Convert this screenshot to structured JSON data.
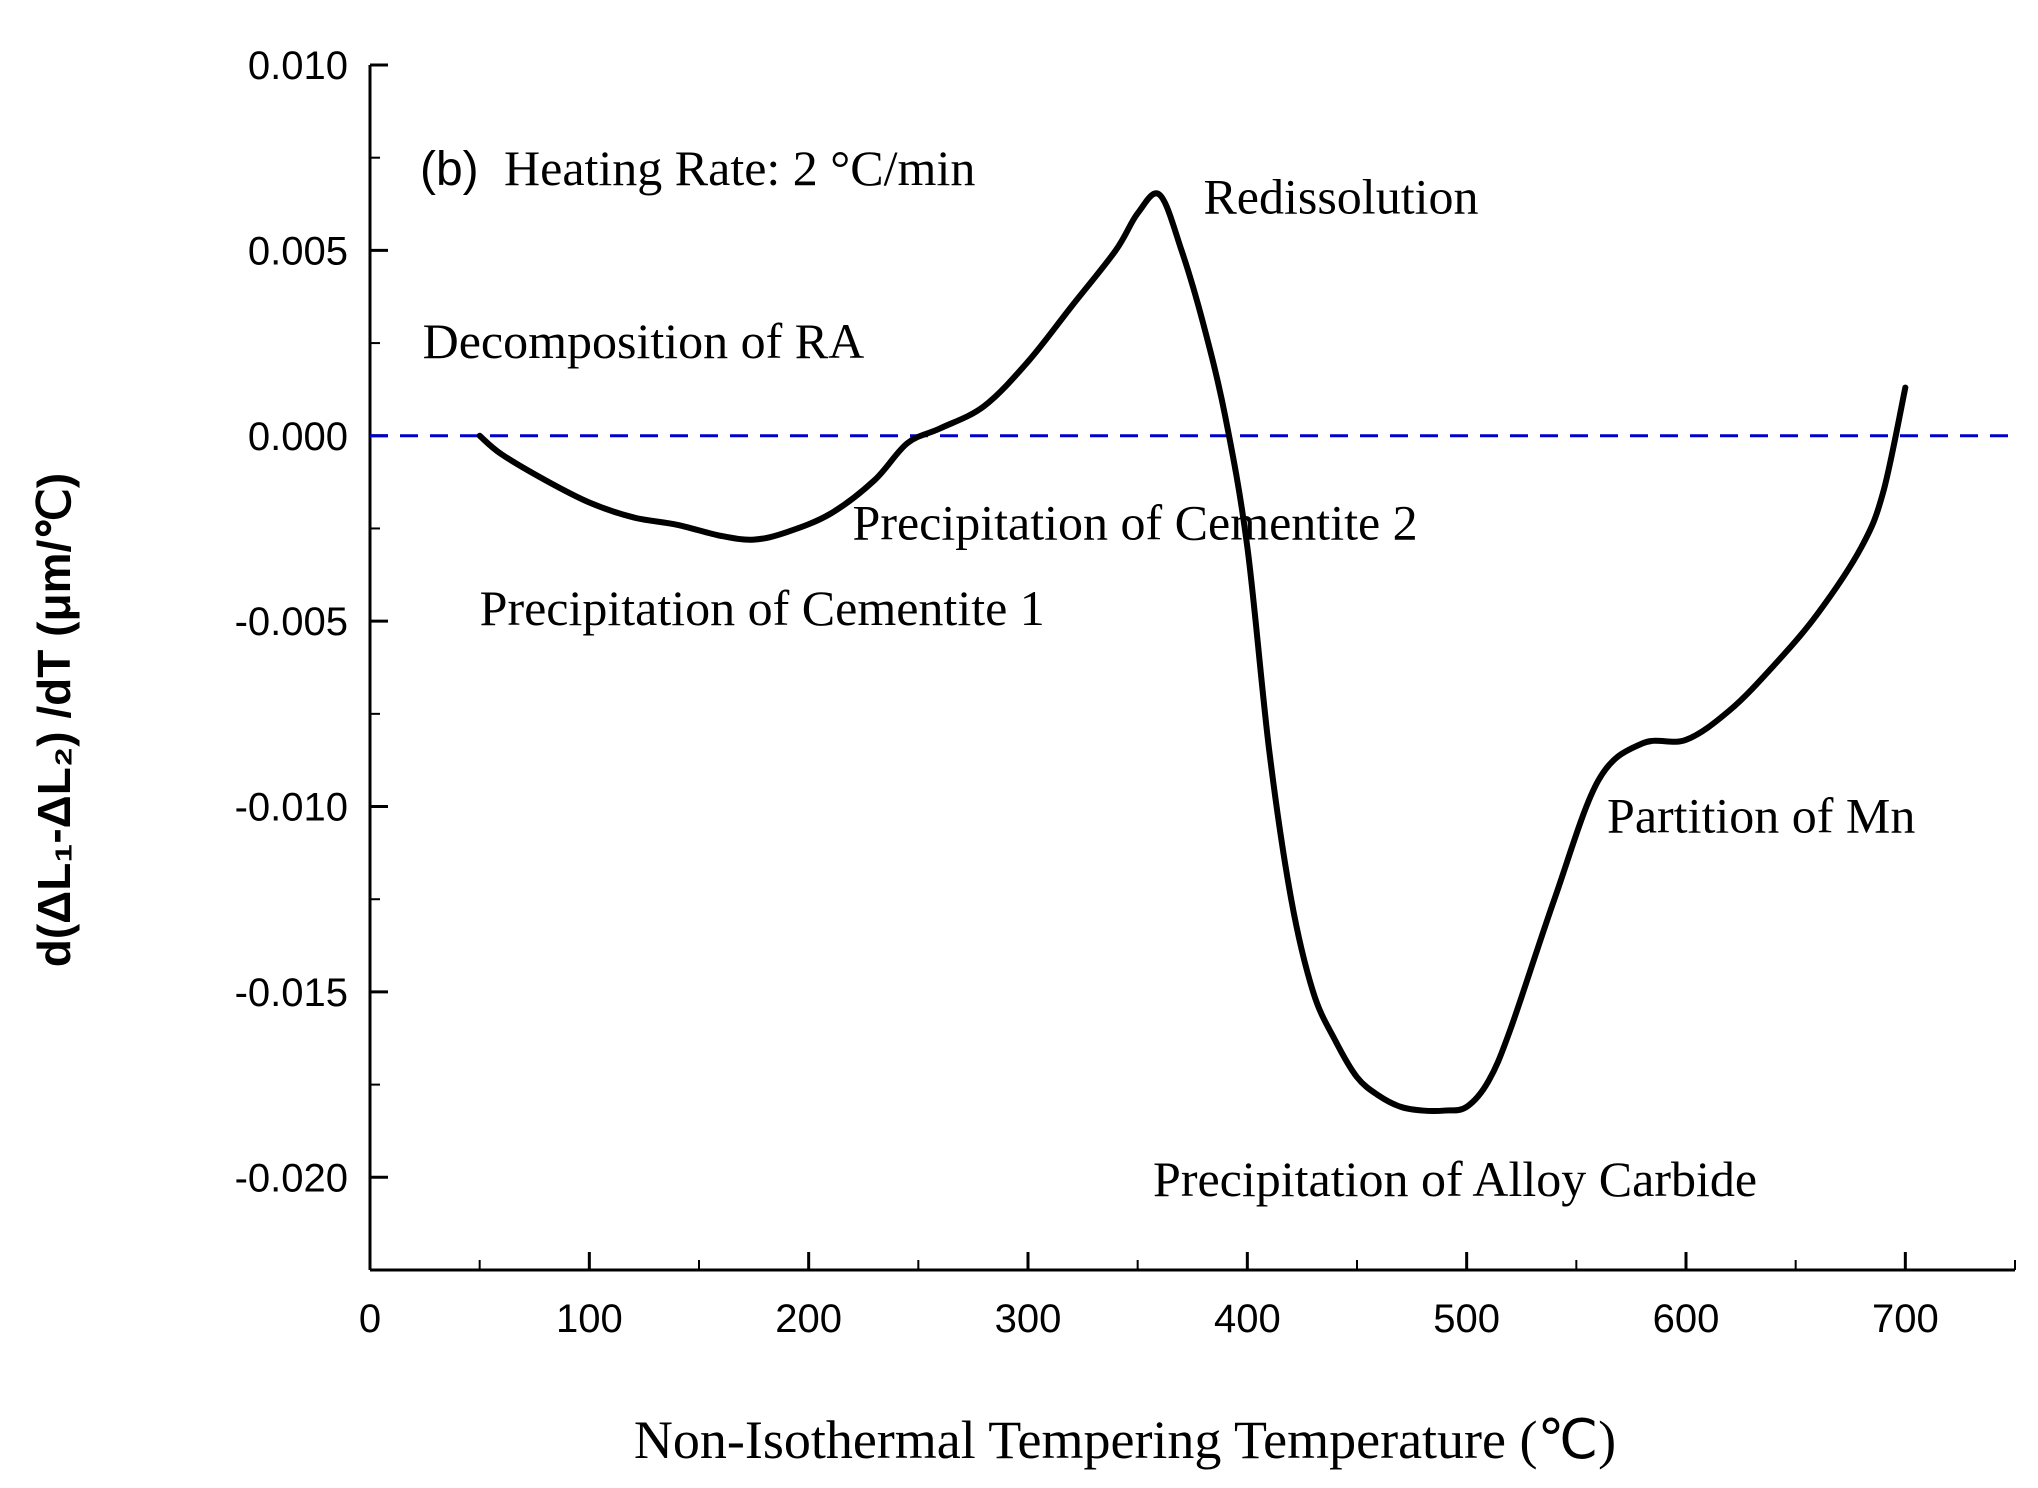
{
  "chart_data": {
    "type": "line",
    "title": "(b) Heating Rate: 2 °C/min",
    "panel": "(b)",
    "subtitle": "Heating Rate: 2 °C/min",
    "xlabel": "Non-Isothermal Tempering Temperature (℃)",
    "ylabel": "d(ΔL₁-ΔL₂) /dT (μm/℃)",
    "xlim": [
      0,
      750
    ],
    "ylim": [
      -0.0225,
      0.01
    ],
    "xticks": [
      0,
      100,
      200,
      300,
      400,
      500,
      600,
      700
    ],
    "xtick_labels": [
      "0",
      "100",
      "200",
      "300",
      "400",
      "500",
      "600",
      "700"
    ],
    "yticks": [
      0.01,
      0.005,
      0.0,
      -0.005,
      -0.01,
      -0.015,
      -0.02
    ],
    "ytick_labels": [
      "0.010",
      "0.005",
      "0.000",
      "-0.005",
      "-0.010",
      "-0.015",
      "-0.020"
    ],
    "reference_line": {
      "y": 0.0,
      "style": "dashed",
      "color": "#0000cc"
    },
    "series": [
      {
        "name": "d(ΔL1-ΔL2)/dT",
        "color": "#000000",
        "x": [
          50,
          60,
          80,
          100,
          120,
          140,
          160,
          175,
          190,
          210,
          230,
          245,
          260,
          280,
          300,
          320,
          340,
          350,
          360,
          370,
          380,
          390,
          400,
          410,
          420,
          430,
          440,
          450,
          460,
          470,
          480,
          490,
          500,
          510,
          520,
          540,
          560,
          580,
          600,
          620,
          640,
          660,
          680,
          690,
          700
        ],
        "y": [
          0.0,
          -0.0005,
          -0.0012,
          -0.0018,
          -0.0022,
          -0.0024,
          -0.0027,
          -0.0028,
          -0.0026,
          -0.0021,
          -0.0012,
          -0.0002,
          0.0002,
          0.0008,
          0.002,
          0.0035,
          0.005,
          0.006,
          0.0065,
          0.005,
          0.003,
          0.0005,
          -0.003,
          -0.0085,
          -0.0125,
          -0.015,
          -0.0163,
          -0.0173,
          -0.0178,
          -0.0181,
          -0.0182,
          -0.0182,
          -0.0181,
          -0.0174,
          -0.016,
          -0.0125,
          -0.0093,
          -0.0083,
          -0.0082,
          -0.0074,
          -0.0062,
          -0.0048,
          -0.003,
          -0.0015,
          0.0013
        ]
      }
    ],
    "annotations": [
      {
        "text": "Decomposition of RA",
        "x": 24,
        "y": 0.0021
      },
      {
        "text": "Redissolution",
        "x": 380,
        "y": 0.006
      },
      {
        "text": "Precipitation of Cementite 2",
        "x": 220,
        "y": -0.0028
      },
      {
        "text": "Precipitation of Cementite 1",
        "x": 50,
        "y": -0.0051
      },
      {
        "text": "Partition of Mn",
        "x": 564,
        "y": -0.0107
      },
      {
        "text": "Precipitation of Alloy Carbide",
        "x": 357,
        "y": -0.0205
      }
    ],
    "grid": false,
    "legend": "none"
  }
}
